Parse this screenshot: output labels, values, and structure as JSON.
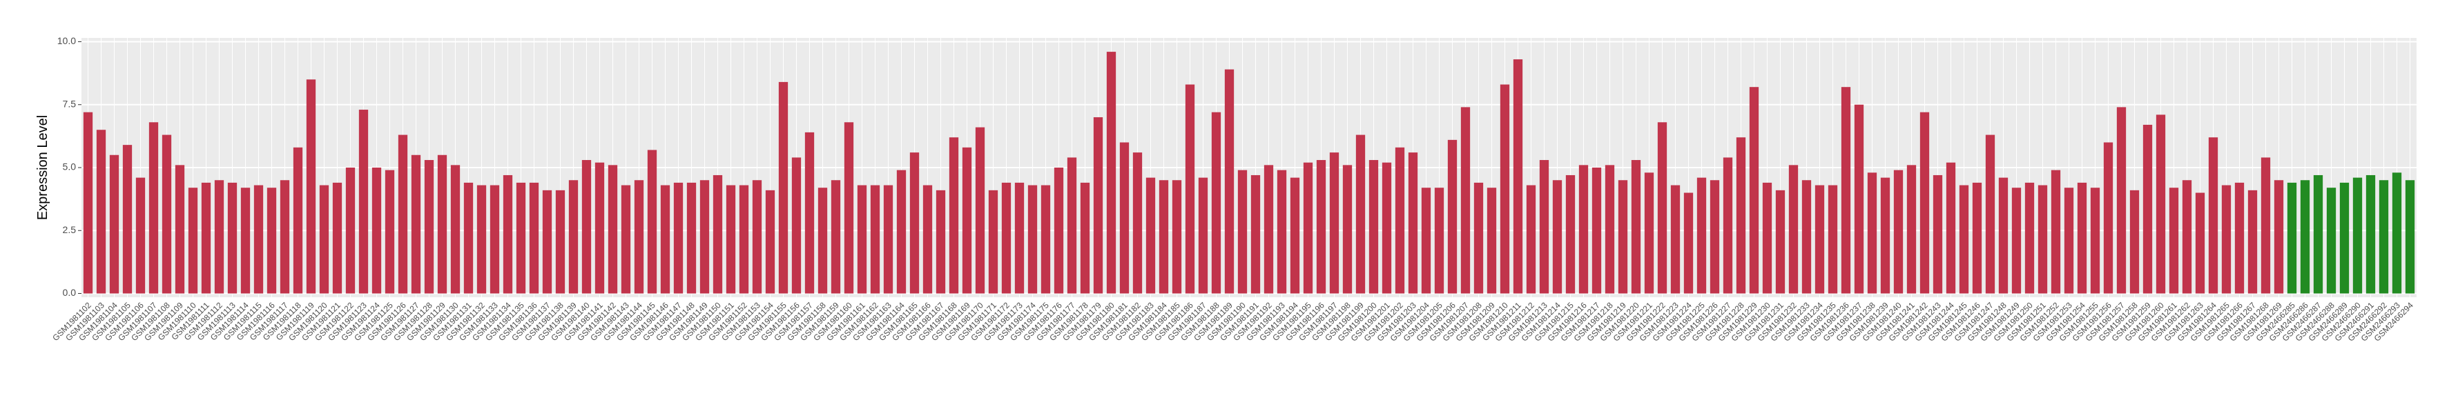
{
  "chart_data": {
    "type": "bar",
    "y_label": "Expression Level",
    "categories": [
      "GSM1981102",
      "GSM1981103",
      "GSM1981104",
      "GSM1981105",
      "GSM1981106",
      "GSM1981107",
      "GSM1981108",
      "GSM1981109",
      "GSM1981110",
      "GSM1981111",
      "GSM1981112",
      "GSM1981113",
      "GSM1981114",
      "GSM1981115",
      "GSM1981116",
      "GSM1981117",
      "GSM1981118",
      "GSM1981119",
      "GSM1981120",
      "GSM1981121",
      "GSM1981122",
      "GSM1981123",
      "GSM1981124",
      "GSM1981125",
      "GSM1981126",
      "GSM1981127",
      "GSM1981128",
      "GSM1981129",
      "GSM1981130",
      "GSM1981131",
      "GSM1981132",
      "GSM1981133",
      "GSM1981134",
      "GSM1981135",
      "GSM1981136",
      "GSM1981137",
      "GSM1981138",
      "GSM1981139",
      "GSM1981140",
      "GSM1981141",
      "GSM1981142",
      "GSM1981143",
      "GSM1981144",
      "GSM1981145",
      "GSM1981146",
      "GSM1981147",
      "GSM1981148",
      "GSM1981149",
      "GSM1981150",
      "GSM1981151",
      "GSM1981152",
      "GSM1981153",
      "GSM1981154",
      "GSM1981155",
      "GSM1981156",
      "GSM1981157",
      "GSM1981158",
      "GSM1981159",
      "GSM1981160",
      "GSM1981161",
      "GSM1981162",
      "GSM1981163",
      "GSM1981164",
      "GSM1981165",
      "GSM1981166",
      "GSM1981167",
      "GSM1981168",
      "GSM1981169",
      "GSM1981170",
      "GSM1981171",
      "GSM1981172",
      "GSM1981173",
      "GSM1981174",
      "GSM1981175",
      "GSM1981176",
      "GSM1981177",
      "GSM1981178",
      "GSM1981179",
      "GSM1981180",
      "GSM1981181",
      "GSM1981182",
      "GSM1981183",
      "GSM1981184",
      "GSM1981185",
      "GSM1981186",
      "GSM1981187",
      "GSM1981188",
      "GSM1981189",
      "GSM1981190",
      "GSM1981191",
      "GSM1981192",
      "GSM1981193",
      "GSM1981194",
      "GSM1981195",
      "GSM1981196",
      "GSM1981197",
      "GSM1981198",
      "GSM1981199",
      "GSM1981200",
      "GSM1981201",
      "GSM1981202",
      "GSM1981203",
      "GSM1981204",
      "GSM1981205",
      "GSM1981206",
      "GSM1981207",
      "GSM1981208",
      "GSM1981209",
      "GSM1981210",
      "GSM1981211",
      "GSM1981212",
      "GSM1981213",
      "GSM1981214",
      "GSM1981215",
      "GSM1981216",
      "GSM1981217",
      "GSM1981218",
      "GSM1981219",
      "GSM1981220",
      "GSM1981221",
      "GSM1981222",
      "GSM1981223",
      "GSM1981224",
      "GSM1981225",
      "GSM1981226",
      "GSM1981227",
      "GSM1981228",
      "GSM1981229",
      "GSM1981230",
      "GSM1981231",
      "GSM1981232",
      "GSM1981233",
      "GSM1981234",
      "GSM1981235",
      "GSM1981236",
      "GSM1981237",
      "GSM1981238",
      "GSM1981239",
      "GSM1981240",
      "GSM1981241",
      "GSM1981242",
      "GSM1981243",
      "GSM1981244",
      "GSM1981245",
      "GSM1981246",
      "GSM1981247",
      "GSM1981248",
      "GSM1981249",
      "GSM1981250",
      "GSM1981251",
      "GSM1981252",
      "GSM1981253",
      "GSM1981254",
      "GSM1981255",
      "GSM1981256",
      "GSM1981257",
      "GSM1981258",
      "GSM1981259",
      "GSM1981260",
      "GSM1981261",
      "GSM1981262",
      "GSM1981263",
      "GSM1981264",
      "GSM1981265",
      "GSM1981266",
      "GSM1981267",
      "GSM1981268",
      "GSM1981269",
      "GSM2466285",
      "GSM2466286",
      "GSM2466287",
      "GSM2466288",
      "GSM2466289",
      "GSM2466290",
      "GSM2466291",
      "GSM2466292",
      "GSM2466293",
      "GSM2466294"
    ],
    "values": [
      7.2,
      6.5,
      5.5,
      5.9,
      4.6,
      6.8,
      6.3,
      5.1,
      4.2,
      4.4,
      4.5,
      4.4,
      4.2,
      4.3,
      4.2,
      4.5,
      5.8,
      8.5,
      4.3,
      4.4,
      5.0,
      7.3,
      5.0,
      4.9,
      6.3,
      5.5,
      5.3,
      5.5,
      5.1,
      4.4,
      4.3,
      4.3,
      4.7,
      4.4,
      4.4,
      4.1,
      4.1,
      4.5,
      5.3,
      5.2,
      5.1,
      4.3,
      4.5,
      5.7,
      4.3,
      4.4,
      4.4,
      4.5,
      4.7,
      4.3,
      4.3,
      4.5,
      4.1,
      8.4,
      5.4,
      6.4,
      4.2,
      4.5,
      6.8,
      4.3,
      4.3,
      4.3,
      4.9,
      5.6,
      4.3,
      4.1,
      6.2,
      5.8,
      6.6,
      4.1,
      4.4,
      4.4,
      4.3,
      4.3,
      5.0,
      5.4,
      4.4,
      7.0,
      9.6,
      6.0,
      5.6,
      4.6,
      4.5,
      4.5,
      8.3,
      4.6,
      7.2,
      8.9,
      4.9,
      4.7,
      5.1,
      4.9,
      4.6,
      5.2,
      5.3,
      5.6,
      5.1,
      6.3,
      5.3,
      5.2,
      5.8,
      5.6,
      4.2,
      4.2,
      6.1,
      7.4,
      4.4,
      4.2,
      8.3,
      9.3,
      4.3,
      5.3,
      4.5,
      4.7,
      5.1,
      5.0,
      5.1,
      4.5,
      5.3,
      4.8,
      6.8,
      4.3,
      4.0,
      4.6,
      4.5,
      5.4,
      6.2,
      8.2,
      4.4,
      4.1,
      5.1,
      4.5,
      4.3,
      4.3,
      8.2,
      7.5,
      4.8,
      4.6,
      4.9,
      5.1,
      7.2,
      4.7,
      5.2,
      4.3,
      4.4,
      6.3,
      4.6,
      4.2,
      4.4,
      4.3,
      4.9,
      4.2,
      4.4,
      4.2,
      6.0,
      7.4,
      4.1,
      6.7,
      7.1,
      4.2,
      4.5,
      4.0,
      6.2,
      4.3,
      4.4,
      4.1,
      5.4,
      4.5,
      4.4,
      4.5,
      4.7,
      4.2,
      4.4,
      4.6,
      4.7,
      4.5,
      4.8,
      4.5
    ],
    "colors": [
      "#c1344b",
      "#c1344b",
      "#c1344b",
      "#c1344b",
      "#c1344b",
      "#c1344b",
      "#c1344b",
      "#c1344b",
      "#c1344b",
      "#c1344b",
      "#c1344b",
      "#c1344b",
      "#c1344b",
      "#c1344b",
      "#c1344b",
      "#c1344b",
      "#c1344b",
      "#c1344b",
      "#c1344b",
      "#c1344b",
      "#c1344b",
      "#c1344b",
      "#c1344b",
      "#c1344b",
      "#c1344b",
      "#c1344b",
      "#c1344b",
      "#c1344b",
      "#c1344b",
      "#c1344b",
      "#c1344b",
      "#c1344b",
      "#c1344b",
      "#c1344b",
      "#c1344b",
      "#c1344b",
      "#c1344b",
      "#c1344b",
      "#c1344b",
      "#c1344b",
      "#c1344b",
      "#c1344b",
      "#c1344b",
      "#c1344b",
      "#c1344b",
      "#c1344b",
      "#c1344b",
      "#c1344b",
      "#c1344b",
      "#c1344b",
      "#c1344b",
      "#c1344b",
      "#c1344b",
      "#c1344b",
      "#c1344b",
      "#c1344b",
      "#c1344b",
      "#c1344b",
      "#c1344b",
      "#c1344b",
      "#c1344b",
      "#c1344b",
      "#c1344b",
      "#c1344b",
      "#c1344b",
      "#c1344b",
      "#c1344b",
      "#c1344b",
      "#c1344b",
      "#c1344b",
      "#c1344b",
      "#c1344b",
      "#c1344b",
      "#c1344b",
      "#c1344b",
      "#c1344b",
      "#c1344b",
      "#c1344b",
      "#c1344b",
      "#c1344b",
      "#c1344b",
      "#c1344b",
      "#c1344b",
      "#c1344b",
      "#c1344b",
      "#c1344b",
      "#c1344b",
      "#c1344b",
      "#c1344b",
      "#c1344b",
      "#c1344b",
      "#c1344b",
      "#c1344b",
      "#c1344b",
      "#c1344b",
      "#c1344b",
      "#c1344b",
      "#c1344b",
      "#c1344b",
      "#c1344b",
      "#c1344b",
      "#c1344b",
      "#c1344b",
      "#c1344b",
      "#c1344b",
      "#c1344b",
      "#c1344b",
      "#c1344b",
      "#c1344b",
      "#c1344b",
      "#c1344b",
      "#c1344b",
      "#c1344b",
      "#c1344b",
      "#c1344b",
      "#c1344b",
      "#c1344b",
      "#c1344b",
      "#c1344b",
      "#c1344b",
      "#c1344b",
      "#c1344b",
      "#c1344b",
      "#c1344b",
      "#c1344b",
      "#c1344b",
      "#c1344b",
      "#c1344b",
      "#c1344b",
      "#c1344b",
      "#c1344b",
      "#c1344b",
      "#c1344b",
      "#c1344b",
      "#c1344b",
      "#c1344b",
      "#c1344b",
      "#c1344b",
      "#c1344b",
      "#c1344b",
      "#c1344b",
      "#c1344b",
      "#c1344b",
      "#c1344b",
      "#c1344b",
      "#c1344b",
      "#c1344b",
      "#c1344b",
      "#c1344b",
      "#c1344b",
      "#c1344b",
      "#c1344b",
      "#c1344b",
      "#c1344b",
      "#c1344b",
      "#c1344b",
      "#c1344b",
      "#c1344b",
      "#c1344b",
      "#c1344b",
      "#c1344b",
      "#c1344b",
      "#c1344b",
      "#c1344b",
      "#c1344b",
      "#c1344b",
      "#c1344b",
      "#c1344b",
      "#228b22",
      "#228b22",
      "#228b22",
      "#228b22",
      "#228b22",
      "#228b22",
      "#228b22",
      "#228b22",
      "#228b22",
      "#228b22"
    ],
    "ylim": [
      -0.15,
      10.15
    ],
    "yticks": [
      {
        "value": 0,
        "label": "0.0"
      },
      2.5,
      {
        "value": 5,
        "label": "5.0"
      },
      7.5,
      {
        "value": 10,
        "label": "10.0"
      }
    ],
    "grid": true
  }
}
